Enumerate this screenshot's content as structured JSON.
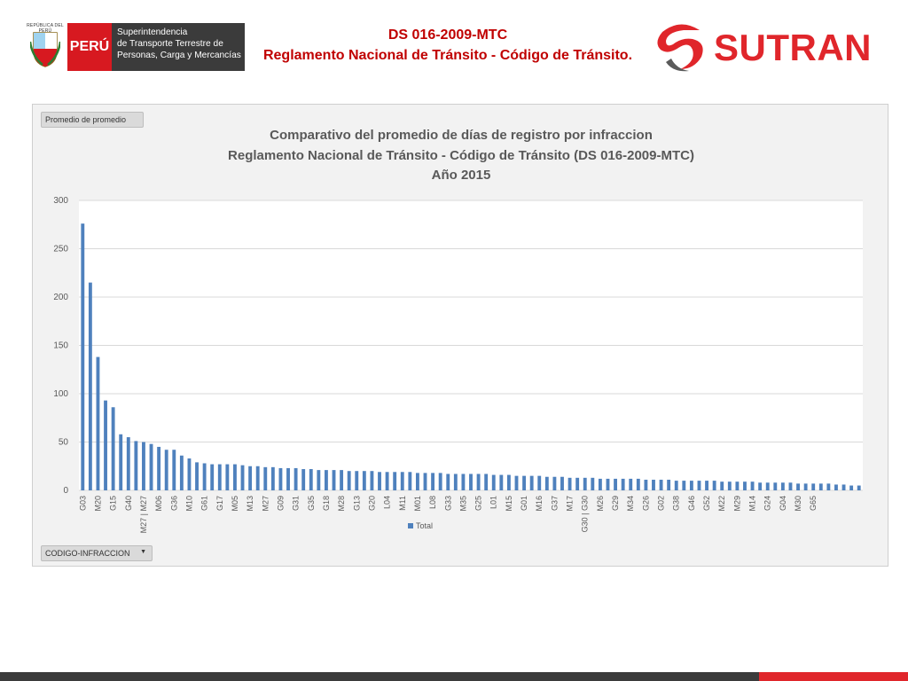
{
  "header": {
    "country_tag": "REPÚBLICA DEL PERÚ",
    "peru_label": "PERÚ",
    "agency_lines": [
      "Superintendencia",
      "de Transporte Terrestre de",
      "Personas, Carga y Mercancías"
    ],
    "title_line1": "DS 016-2009-MTC",
    "title_line2": "Reglamento Nacional de Tránsito - Código de Tránsito.",
    "brand": "SUTRAN",
    "colors": {
      "red": "#d71920",
      "dark": "#3b3b3b",
      "title": "#c00000",
      "brand": "#e0262b"
    }
  },
  "pivot": {
    "value_field": "Promedio de promedio",
    "row_field": "CODIGO-INFRACCION",
    "row_field_icon": "dropdown-caret-icon"
  },
  "chart_data": {
    "type": "bar",
    "title_lines": [
      "Comparativo del promedio de días de registro por infraccion",
      "Reglamento Nacional de Tránsito - Código de Tránsito (DS 016-2009-MTC)",
      "Año 2015"
    ],
    "ylim": [
      0,
      300
    ],
    "yticks": [
      0,
      50,
      100,
      150,
      200,
      250,
      300
    ],
    "grid": true,
    "legend": "bottom",
    "color": "#4f81bd",
    "series": [
      {
        "name": "Total",
        "values": [
          276,
          215,
          138,
          93,
          86,
          58,
          55,
          51,
          50,
          48,
          45,
          42,
          42,
          36,
          33,
          29,
          28,
          27,
          27,
          27,
          27,
          26,
          25,
          25,
          24,
          24,
          23,
          23,
          23,
          22,
          22,
          21,
          21,
          21,
          21,
          20,
          20,
          20,
          20,
          19,
          19,
          19,
          19,
          19,
          18,
          18,
          18,
          18,
          17,
          17,
          17,
          17,
          17,
          17,
          16,
          16,
          16,
          15,
          15,
          15,
          15,
          14,
          14,
          14,
          13,
          13,
          13,
          13,
          12,
          12,
          12,
          12,
          12,
          12,
          11,
          11,
          11,
          11,
          10,
          10,
          10,
          10,
          10,
          10,
          9,
          9,
          9,
          9,
          9,
          8,
          8,
          8,
          8,
          8,
          7,
          7,
          7,
          7,
          7,
          6,
          6,
          5,
          5
        ]
      }
    ],
    "x_tick_labels": [
      {
        "index": 0,
        "label": "G03"
      },
      {
        "index": 2,
        "label": "M20"
      },
      {
        "index": 4,
        "label": "G15"
      },
      {
        "index": 6,
        "label": "G40"
      },
      {
        "index": 8,
        "label": "M27 | M27"
      },
      {
        "index": 10,
        "label": "M06"
      },
      {
        "index": 12,
        "label": "G36"
      },
      {
        "index": 14,
        "label": "M10"
      },
      {
        "index": 16,
        "label": "G61"
      },
      {
        "index": 18,
        "label": "G17"
      },
      {
        "index": 20,
        "label": "M05"
      },
      {
        "index": 22,
        "label": "M13"
      },
      {
        "index": 24,
        "label": "M27"
      },
      {
        "index": 26,
        "label": "G09"
      },
      {
        "index": 28,
        "label": "G31"
      },
      {
        "index": 30,
        "label": "G35"
      },
      {
        "index": 32,
        "label": "G18"
      },
      {
        "index": 34,
        "label": "M28"
      },
      {
        "index": 36,
        "label": "G13"
      },
      {
        "index": 38,
        "label": "G20"
      },
      {
        "index": 40,
        "label": "L04"
      },
      {
        "index": 42,
        "label": "M11"
      },
      {
        "index": 44,
        "label": "M01"
      },
      {
        "index": 46,
        "label": "L08"
      },
      {
        "index": 48,
        "label": "G33"
      },
      {
        "index": 50,
        "label": "M35"
      },
      {
        "index": 52,
        "label": "G25"
      },
      {
        "index": 54,
        "label": "L01"
      },
      {
        "index": 56,
        "label": "M15"
      },
      {
        "index": 58,
        "label": "G01"
      },
      {
        "index": 60,
        "label": "M16"
      },
      {
        "index": 62,
        "label": "G37"
      },
      {
        "index": 64,
        "label": "M17"
      },
      {
        "index": 66,
        "label": "G30 | G30"
      },
      {
        "index": 68,
        "label": "M26"
      },
      {
        "index": 70,
        "label": "G29"
      },
      {
        "index": 72,
        "label": "M34"
      },
      {
        "index": 74,
        "label": "G26"
      },
      {
        "index": 76,
        "label": "G02"
      },
      {
        "index": 78,
        "label": "G38"
      },
      {
        "index": 80,
        "label": "G46"
      },
      {
        "index": 82,
        "label": "G52"
      },
      {
        "index": 84,
        "label": "M22"
      },
      {
        "index": 86,
        "label": "M29"
      },
      {
        "index": 88,
        "label": "M14"
      },
      {
        "index": 90,
        "label": "G24"
      },
      {
        "index": 92,
        "label": "G04"
      },
      {
        "index": 94,
        "label": "M30"
      },
      {
        "index": 96,
        "label": "G65"
      }
    ]
  }
}
